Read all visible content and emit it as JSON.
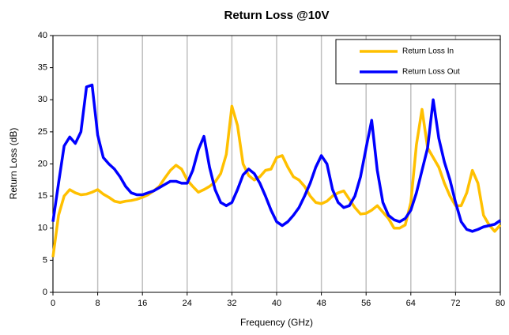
{
  "chart_data": {
    "type": "line",
    "title": "Return Loss @10V",
    "x_label": "Frequency (GHz)",
    "y_label": "Return Loss (dB)",
    "x": [
      0,
      1,
      2,
      3,
      4,
      5,
      6,
      7,
      8,
      9,
      10,
      11,
      12,
      13,
      14,
      15,
      16,
      17,
      18,
      19,
      20,
      21,
      22,
      23,
      24,
      25,
      26,
      27,
      28,
      29,
      30,
      31,
      32,
      33,
      34,
      35,
      36,
      37,
      38,
      39,
      40,
      41,
      42,
      43,
      44,
      45,
      46,
      47,
      48,
      49,
      50,
      51,
      52,
      53,
      54,
      55,
      56,
      57,
      58,
      59,
      60,
      61,
      62,
      63,
      64,
      65,
      66,
      67,
      68,
      69,
      70,
      71,
      72,
      73,
      74,
      75,
      76,
      77,
      78,
      79,
      80
    ],
    "series": [
      {
        "name": "Return Loss In",
        "color": "#ffc000",
        "values": [
          5.5,
          12,
          15,
          16,
          15.5,
          15.2,
          15.3,
          15.6,
          16,
          15.3,
          14.8,
          14.2,
          14,
          14.2,
          14.3,
          14.5,
          14.8,
          15.2,
          15.8,
          16.5,
          17.8,
          19,
          19.8,
          19.2,
          17.5,
          16.5,
          15.6,
          16,
          16.5,
          17.2,
          18.5,
          21.5,
          29,
          26,
          20,
          18.2,
          17.5,
          18,
          19,
          19.2,
          21,
          21.3,
          19.5,
          18,
          17.5,
          16.5,
          15,
          14,
          13.8,
          14.2,
          15,
          15.5,
          15.8,
          14.5,
          13.2,
          12.2,
          12.3,
          12.8,
          13.5,
          12.5,
          11.5,
          10,
          10,
          10.5,
          14,
          23,
          28.5,
          22.5,
          21,
          19.5,
          17,
          15,
          13.5,
          13.5,
          15.5,
          19,
          17,
          12,
          10.5,
          9.5,
          10.5
        ]
      },
      {
        "name": "Return Loss Out",
        "color": "#0000ff",
        "values": [
          11,
          17,
          22.8,
          24.2,
          23.2,
          25,
          32,
          32.3,
          24.5,
          21,
          20,
          19.2,
          18,
          16.5,
          15.5,
          15.2,
          15.2,
          15.5,
          15.8,
          16.3,
          16.8,
          17.3,
          17.3,
          17,
          17,
          19,
          22.2,
          24.3,
          19.5,
          16,
          14,
          13.5,
          14,
          16,
          18.3,
          19.2,
          18.5,
          17,
          15,
          12.8,
          11,
          10.4,
          11,
          12,
          13.2,
          15,
          17,
          19.5,
          21.3,
          20,
          16,
          14,
          13.2,
          13.5,
          15,
          18,
          22.5,
          26.8,
          19,
          14,
          12,
          11.3,
          11,
          11.5,
          12.8,
          15.5,
          19,
          22.5,
          30,
          24,
          20.3,
          17.5,
          14,
          11,
          9.8,
          9.5,
          9.8,
          10.2,
          10.4,
          10.6,
          11.2
        ]
      }
    ],
    "xlim": [
      0,
      80
    ],
    "xticks": [
      0,
      8,
      16,
      24,
      32,
      40,
      48,
      56,
      64,
      72,
      80
    ],
    "ylim": [
      0,
      40
    ],
    "yticks": [
      0,
      5,
      10,
      15,
      20,
      25,
      30,
      35,
      40
    ],
    "grid": "x",
    "legend": "upper right"
  }
}
